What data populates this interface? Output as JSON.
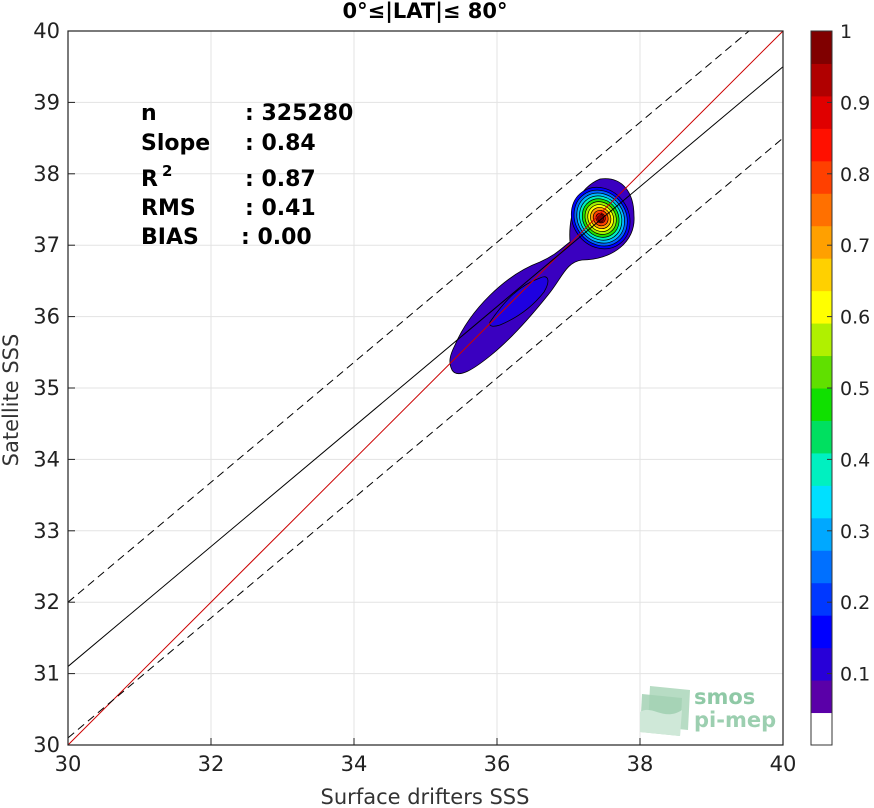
{
  "chart_data": {
    "type": "density_contour_scatter",
    "title": "0°≤|LAT|≤ 80°",
    "xlabel": "Surface drifters SSS",
    "ylabel": "Satellite SSS",
    "xlim": [
      30,
      40
    ],
    "ylim": [
      30,
      40
    ],
    "xticks": [
      30,
      32,
      34,
      36,
      38,
      40
    ],
    "yticks": [
      30,
      31,
      32,
      33,
      34,
      35,
      36,
      37,
      38,
      39,
      40
    ],
    "grid": true,
    "stats": [
      {
        "label": "n",
        "value": ": 325280"
      },
      {
        "label": "Slope",
        "value": ": 0.84"
      },
      {
        "label": "R",
        "sup": "2",
        "value": ": 0.87"
      },
      {
        "label": "RMS",
        "value": ": 0.41"
      },
      {
        "label": "BIAS",
        "value": ": 0.00"
      }
    ],
    "lines": [
      {
        "name": "one-to-one",
        "color": "#cc0000",
        "style": "solid",
        "slope": 1,
        "intercept": 0
      },
      {
        "name": "regression",
        "color": "#000000",
        "style": "solid",
        "slope": 0.84,
        "intercept": 5.9
      },
      {
        "name": "upper-bound",
        "color": "#000000",
        "style": "dashed",
        "slope": 0.84,
        "intercept": 6.8
      },
      {
        "name": "lower-bound",
        "color": "#000000",
        "style": "dashed",
        "slope": 0.84,
        "intercept": 4.9
      }
    ],
    "density_peak": {
      "x": 37.45,
      "y": 37.38,
      "value": 1.0
    },
    "colorbar": {
      "ticks": [
        0.1,
        0.2,
        0.3,
        0.4,
        0.5,
        0.6,
        0.7,
        0.8,
        0.9,
        1
      ],
      "tick_labels": [
        "0.1",
        "0.2",
        "0.3",
        "0.4",
        "0.5",
        "0.6",
        "0.7",
        "0.8",
        "0.9",
        "1"
      ],
      "range": [
        0,
        1
      ],
      "colors": [
        "#ffffff",
        "#5a00a8",
        "#2800d8",
        "#0000ff",
        "#0038ff",
        "#0070ff",
        "#00a8ff",
        "#00e0ff",
        "#00f0c0",
        "#00e060",
        "#10e000",
        "#60e000",
        "#b0f000",
        "#ffff00",
        "#ffd000",
        "#ffa000",
        "#ff7000",
        "#ff4000",
        "#ff1000",
        "#e00000",
        "#b00000",
        "#800000"
      ]
    }
  },
  "logo": {
    "line1": "smos",
    "line2": "pi-mep"
  }
}
